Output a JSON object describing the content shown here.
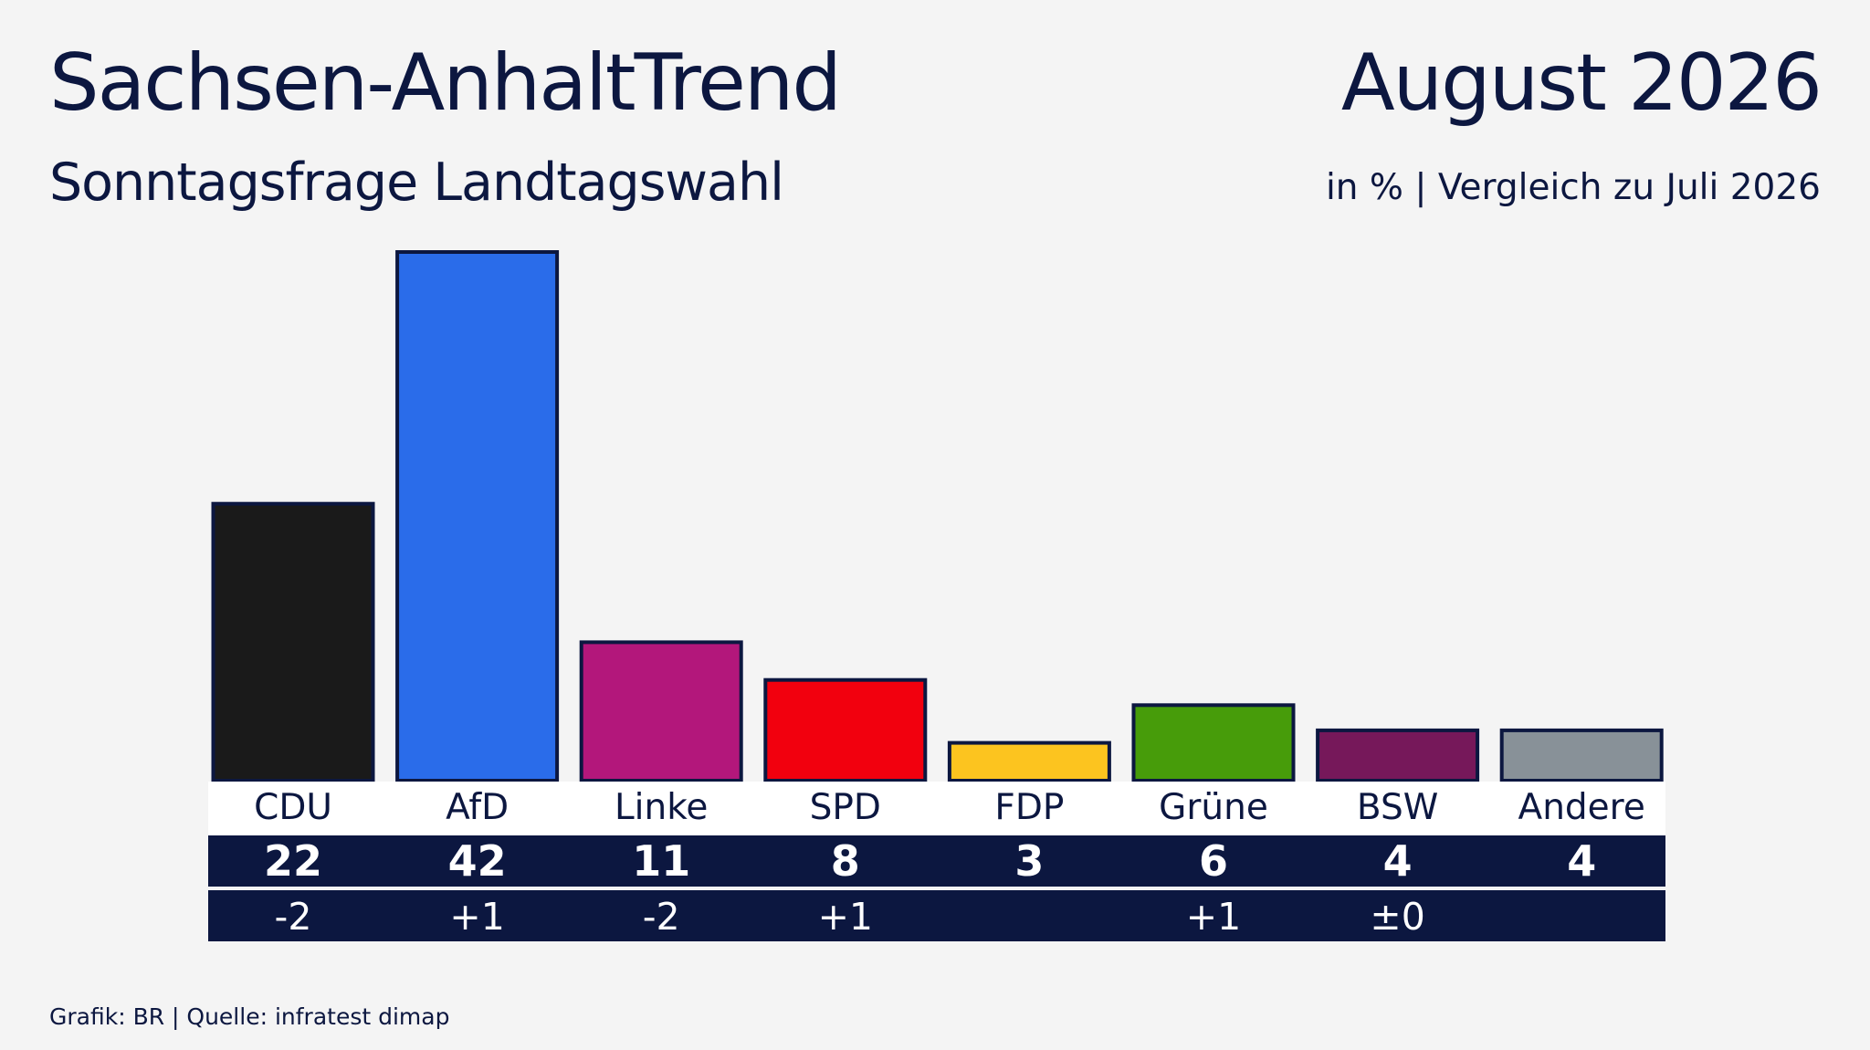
{
  "header": {
    "title": "Sachsen-AnhaltTrend",
    "subtitle": "Sonntagsfrage Landtagswahl",
    "date": "August 2026",
    "unit_note": "in % | Vergleich zu Juli 2026"
  },
  "footer": {
    "text": "Grafik: BR | Quelle: infratest dimap"
  },
  "chart_data": {
    "type": "bar",
    "title": "Sachsen-AnhaltTrend",
    "subtitle": "Sonntagsfrage Landtagswahl",
    "categories": [
      "CDU",
      "AfD",
      "Linke",
      "SPD",
      "FDP",
      "Grüne",
      "BSW",
      "Andere"
    ],
    "values": [
      22,
      42,
      11,
      8,
      3,
      6,
      4,
      4
    ],
    "value_labels": [
      "22",
      "42",
      "11",
      "8",
      "3",
      "6",
      "4",
      "4"
    ],
    "changes": [
      "-2",
      "+1",
      "-2",
      "+1",
      "",
      "+1",
      "±0",
      ""
    ],
    "colors": [
      "#1a1a1a",
      "#2a6cea",
      "#b3177b",
      "#f2000e",
      "#fcc41f",
      "#479c0a",
      "#76185a",
      "#889198"
    ],
    "ylim": [
      0,
      42
    ],
    "grid": false,
    "xlabel": "",
    "ylabel": ""
  }
}
